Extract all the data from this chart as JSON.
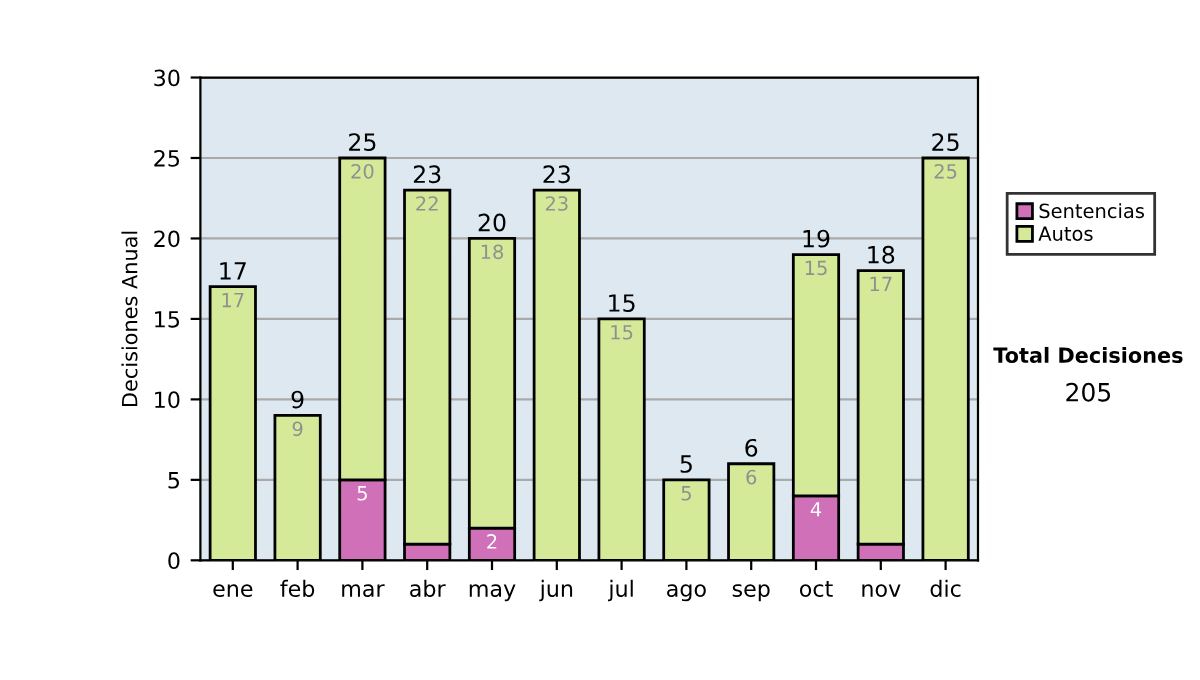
{
  "chart_data": {
    "type": "bar",
    "stacked": true,
    "ylabel": "Decisiones Anual",
    "categories": [
      "ene",
      "feb",
      "mar",
      "abr",
      "may",
      "jun",
      "jul",
      "ago",
      "sep",
      "oct",
      "nov",
      "dic"
    ],
    "series": [
      {
        "name": "Sentencias",
        "color": "#d070b8",
        "values": [
          null,
          null,
          5,
          1,
          2,
          null,
          null,
          null,
          null,
          4,
          1,
          null
        ],
        "value_labels": [
          null,
          null,
          "5",
          null,
          "2",
          null,
          null,
          null,
          null,
          "4",
          null,
          null
        ]
      },
      {
        "name": "Autos",
        "color": "#d4ea98",
        "values": [
          17,
          9,
          20,
          22,
          18,
          23,
          15,
          5,
          6,
          15,
          17,
          25
        ],
        "value_labels": [
          "17",
          "9",
          "20",
          "22",
          "18",
          "23",
          "15",
          "5",
          "6",
          "15",
          "17",
          "25"
        ]
      }
    ],
    "totals": [
      "17",
      "9",
      "25",
      "23",
      "20",
      "23",
      "15",
      "5",
      "6",
      "19",
      "18",
      "25"
    ],
    "ylim": [
      0,
      30
    ],
    "yticks": [
      0,
      5,
      10,
      15,
      20,
      25,
      30
    ],
    "grid": "y",
    "legend": "right",
    "annotations": [
      "Total Decisiones",
      "205"
    ]
  }
}
